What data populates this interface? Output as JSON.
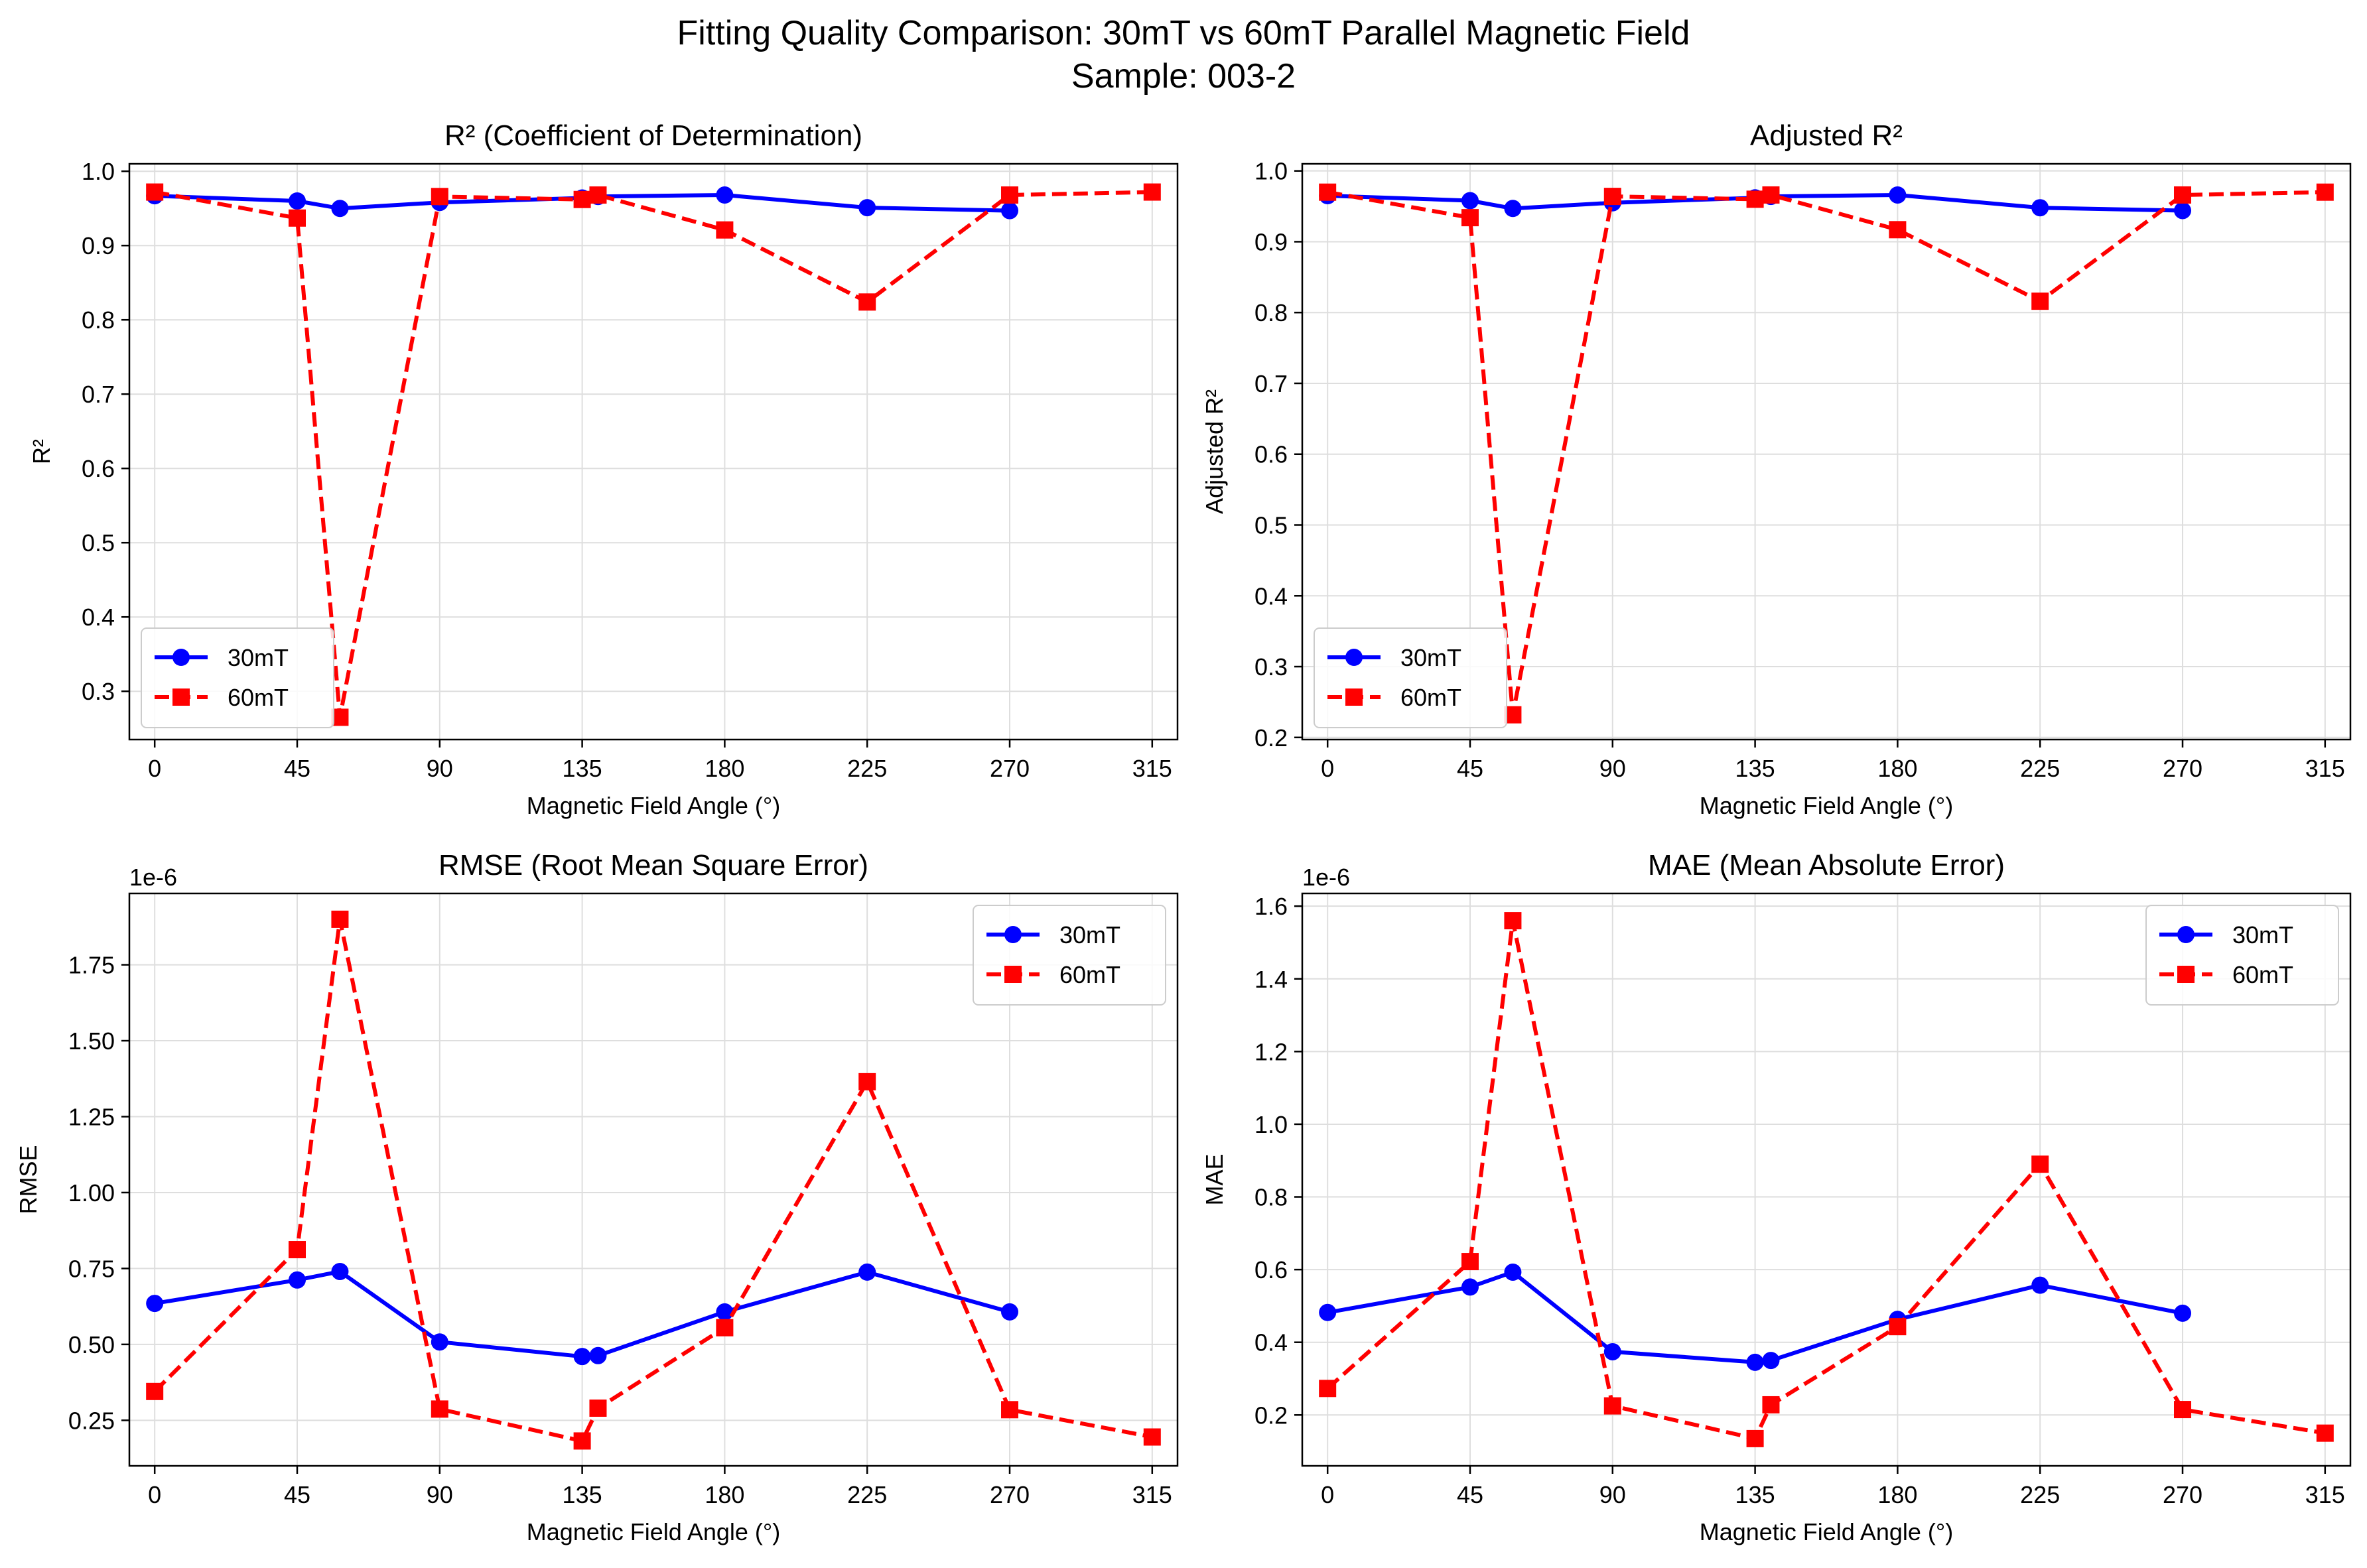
{
  "figure": {
    "title_line1": "Fitting Quality Comparison: 30mT vs 60mT Parallel Magnetic Field",
    "title_line2": "Sample: 003-2"
  },
  "colors": {
    "series_30mT": "#0000ff",
    "series_60mT": "#ff0000"
  },
  "chart_data": [
    {
      "type": "line",
      "title": "R² (Coefficient of Determination)",
      "xlabel": "Magnetic Field Angle (°)",
      "ylabel": "R²",
      "xlim": [
        -8,
        323
      ],
      "ylim": [
        0.235,
        1.01
      ],
      "xticks": [
        0,
        45,
        90,
        135,
        180,
        225,
        270,
        315
      ],
      "xtick_labels": [
        "0",
        "45",
        "90",
        "135",
        "180",
        "225",
        "270",
        "315"
      ],
      "yticks": [
        0.3,
        0.4,
        0.5,
        0.6,
        0.7,
        0.8,
        0.9,
        1.0
      ],
      "ytick_labels": [
        "0.3",
        "0.4",
        "0.5",
        "0.6",
        "0.7",
        "0.8",
        "0.9",
        "1.0"
      ],
      "offset_text": "",
      "grid": true,
      "legend": "lower left",
      "series": [
        {
          "name": "30mT",
          "color": "#0000ff",
          "linestyle": "solid",
          "marker": "circle",
          "x": [
            0,
            45,
            58.5,
            90,
            135,
            140,
            180,
            225,
            270
          ],
          "y": [
            0.967,
            0.96,
            0.95,
            0.958,
            0.964,
            0.966,
            0.968,
            0.951,
            0.947
          ]
        },
        {
          "name": "60mT",
          "color": "#ff0000",
          "linestyle": "dashed",
          "marker": "square",
          "x": [
            0,
            45,
            58.5,
            90,
            135,
            140,
            180,
            225,
            270,
            315
          ],
          "y": [
            0.972,
            0.937,
            0.265,
            0.966,
            0.962,
            0.968,
            0.921,
            0.824,
            0.968,
            0.972
          ]
        }
      ]
    },
    {
      "type": "line",
      "title": "Adjusted R²",
      "xlabel": "Magnetic Field Angle (°)",
      "ylabel": "Adjusted R²",
      "xlim": [
        -8,
        323
      ],
      "ylim": [
        0.197,
        1.01
      ],
      "xticks": [
        0,
        45,
        90,
        135,
        180,
        225,
        270,
        315
      ],
      "xtick_labels": [
        "0",
        "45",
        "90",
        "135",
        "180",
        "225",
        "270",
        "315"
      ],
      "yticks": [
        0.2,
        0.3,
        0.4,
        0.5,
        0.6,
        0.7,
        0.8,
        0.9,
        1.0
      ],
      "ytick_labels": [
        "0.2",
        "0.3",
        "0.4",
        "0.5",
        "0.6",
        "0.7",
        "0.8",
        "0.9",
        "1.0"
      ],
      "offset_text": "",
      "grid": true,
      "legend": "lower left",
      "series": [
        {
          "name": "30mT",
          "color": "#0000ff",
          "linestyle": "solid",
          "marker": "circle",
          "x": [
            0,
            45,
            58.5,
            90,
            135,
            140,
            180,
            225,
            270
          ],
          "y": [
            0.965,
            0.958,
            0.947,
            0.955,
            0.962,
            0.964,
            0.966,
            0.948,
            0.944
          ]
        },
        {
          "name": "60mT",
          "color": "#ff0000",
          "linestyle": "dashed",
          "marker": "square",
          "x": [
            0,
            45,
            58.5,
            90,
            135,
            140,
            180,
            225,
            270,
            315
          ],
          "y": [
            0.97,
            0.934,
            0.232,
            0.964,
            0.96,
            0.966,
            0.917,
            0.816,
            0.966,
            0.97
          ]
        }
      ]
    },
    {
      "type": "line",
      "title": "RMSE (Root Mean Square Error)",
      "xlabel": "Magnetic Field Angle (°)",
      "ylabel": "RMSE",
      "xlim": [
        -8,
        323
      ],
      "ylim": [
        0.1,
        1.985
      ],
      "xticks": [
        0,
        45,
        90,
        135,
        180,
        225,
        270,
        315
      ],
      "xtick_labels": [
        "0",
        "45",
        "90",
        "135",
        "180",
        "225",
        "270",
        "315"
      ],
      "yticks": [
        0.25,
        0.5,
        0.75,
        1.0,
        1.25,
        1.5,
        1.75
      ],
      "ytick_labels": [
        "0.25",
        "0.50",
        "0.75",
        "1.00",
        "1.25",
        "1.50",
        "1.75"
      ],
      "offset_text": "1e-6",
      "grid": true,
      "legend": "upper right",
      "series": [
        {
          "name": "30mT",
          "color": "#0000ff",
          "linestyle": "solid",
          "marker": "circle",
          "x": [
            0,
            45,
            58.5,
            90,
            135,
            140,
            180,
            225,
            270
          ],
          "y": [
            0.635,
            0.712,
            0.74,
            0.508,
            0.46,
            0.463,
            0.607,
            0.738,
            0.607
          ]
        },
        {
          "name": "60mT",
          "color": "#ff0000",
          "linestyle": "dashed",
          "marker": "square",
          "x": [
            0,
            45,
            58.5,
            90,
            135,
            140,
            180,
            225,
            270,
            315
          ],
          "y": [
            0.345,
            0.812,
            1.9,
            0.287,
            0.182,
            0.29,
            0.555,
            1.365,
            0.285,
            0.195
          ]
        }
      ]
    },
    {
      "type": "line",
      "title": "MAE (Mean Absolute Error)",
      "xlabel": "Magnetic Field Angle (°)",
      "ylabel": "MAE",
      "xlim": [
        -8,
        323
      ],
      "ylim": [
        0.06,
        1.635
      ],
      "xticks": [
        0,
        45,
        90,
        135,
        180,
        225,
        270,
        315
      ],
      "xtick_labels": [
        "0",
        "45",
        "90",
        "135",
        "180",
        "225",
        "270",
        "315"
      ],
      "yticks": [
        0.2,
        0.4,
        0.6,
        0.8,
        1.0,
        1.2,
        1.4,
        1.6
      ],
      "ytick_labels": [
        "0.2",
        "0.4",
        "0.6",
        "0.8",
        "1.0",
        "1.2",
        "1.4",
        "1.6"
      ],
      "offset_text": "1e-6",
      "grid": true,
      "legend": "upper right",
      "series": [
        {
          "name": "30mT",
          "color": "#0000ff",
          "linestyle": "solid",
          "marker": "circle",
          "x": [
            0,
            45,
            58.5,
            90,
            135,
            140,
            180,
            225,
            270
          ],
          "y": [
            0.482,
            0.552,
            0.593,
            0.374,
            0.345,
            0.35,
            0.463,
            0.557,
            0.48
          ]
        },
        {
          "name": "60mT",
          "color": "#ff0000",
          "linestyle": "dashed",
          "marker": "square",
          "x": [
            0,
            45,
            58.5,
            90,
            135,
            140,
            180,
            225,
            270,
            315
          ],
          "y": [
            0.273,
            0.622,
            1.56,
            0.225,
            0.135,
            0.228,
            0.443,
            0.89,
            0.215,
            0.15
          ]
        }
      ]
    }
  ]
}
